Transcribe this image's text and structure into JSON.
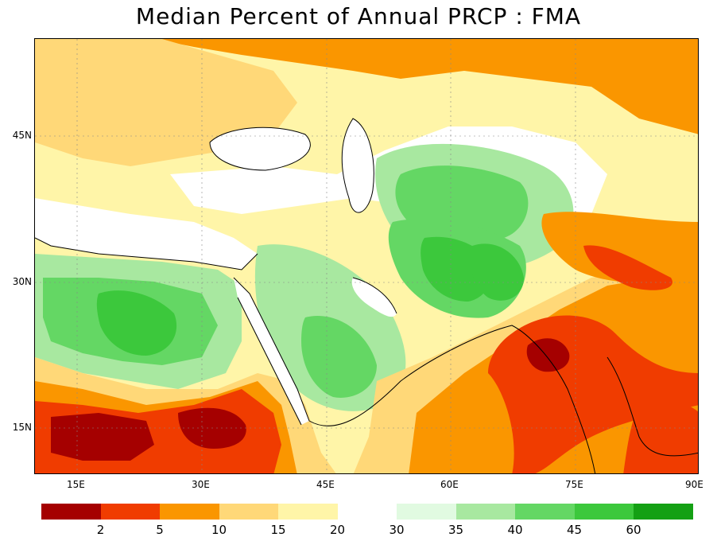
{
  "title": "Median Percent of Annual PRCP  :  FMA",
  "lon_labels": [
    "15E",
    "30E",
    "45E",
    "60E",
    "75E",
    "90E"
  ],
  "lat_labels": [
    "45N",
    "30N",
    "15N"
  ],
  "legend": {
    "labels": [
      "2",
      "5",
      "10",
      "15",
      "20",
      "30",
      "35",
      "40",
      "45",
      "60"
    ],
    "colors": [
      "#a50000",
      "#f03c00",
      "#fa9600",
      "#ffd878",
      "#fff5a8",
      "#ffffff",
      "#e1fae1",
      "#a8e8a0",
      "#64d764",
      "#3cc83c",
      "#14a014"
    ]
  },
  "colors": {
    "ocean": "#ffffff",
    "dark_red": "#a50000",
    "red": "#f03c00",
    "orange": "#fa9600",
    "light_orange": "#ffd878",
    "pale_yellow": "#fff5a8",
    "pale_green": "#e1fae1",
    "light_green": "#a8e8a0",
    "green": "#64d764",
    "mid_green": "#3cc83c",
    "dark_green": "#14a014"
  }
}
